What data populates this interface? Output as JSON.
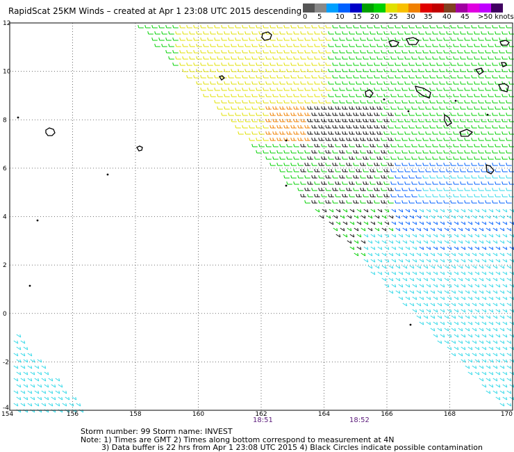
{
  "title": "RapidScat 25KM Winds – created at Apr  1 23:08 UTC 2015 descending",
  "legend": {
    "colors": [
      "#555555",
      "#888888",
      "#00a0ff",
      "#0060ff",
      "#0000c8",
      "#00a000",
      "#00d000",
      "#e0e000",
      "#f8c000",
      "#f08000",
      "#e00000",
      "#c00000",
      "#804020",
      "#a000a0",
      "#e000e0",
      "#c000ff",
      "#400060"
    ],
    "labels": [
      "0",
      "5",
      "10",
      "15",
      "20",
      "25",
      "30",
      "35",
      "40",
      "45",
      ">50 knots"
    ]
  },
  "map": {
    "lat_ticks": [
      "12",
      "10",
      "8",
      "6",
      "4",
      "2",
      "0",
      "-2",
      "-4"
    ],
    "lon_ticks": [
      "154",
      "156",
      "158",
      "160",
      "162",
      "164",
      "166",
      "168",
      "170"
    ]
  },
  "pass_times": [
    "18:51",
    "18:52"
  ],
  "footer": {
    "line1": "Storm number: 99     Storm name: INVEST",
    "line2": "Note: 1) Times are GMT  2) Times along bottom correspond to measurement at 4N",
    "line3": "3) Data buffer is 22 hrs from Apr  1 23:08 UTC 2015   4) Black Circles indicate possible contamination"
  }
}
